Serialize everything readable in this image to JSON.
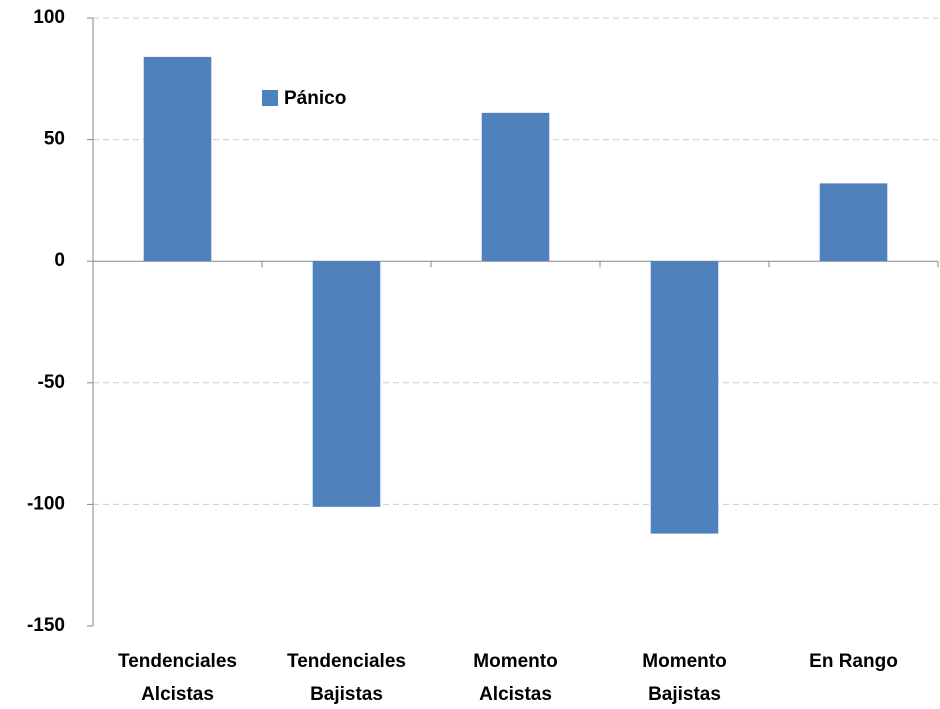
{
  "chart_data": {
    "type": "bar",
    "categories": [
      [
        "Tendenciales",
        "Alcistas"
      ],
      [
        "Tendenciales",
        "Bajistas"
      ],
      [
        "Momento",
        "Alcistas"
      ],
      [
        "Momento",
        "Bajistas"
      ],
      [
        "En Rango"
      ]
    ],
    "series": [
      {
        "name": "Pánico",
        "color": "#4f81bd",
        "values": [
          84,
          -101,
          61,
          -112,
          32
        ]
      }
    ],
    "ylim": [
      -150,
      100
    ],
    "yticks": [
      -150,
      -100,
      -50,
      0,
      50,
      100
    ],
    "grid": true,
    "legend": "top-left"
  }
}
